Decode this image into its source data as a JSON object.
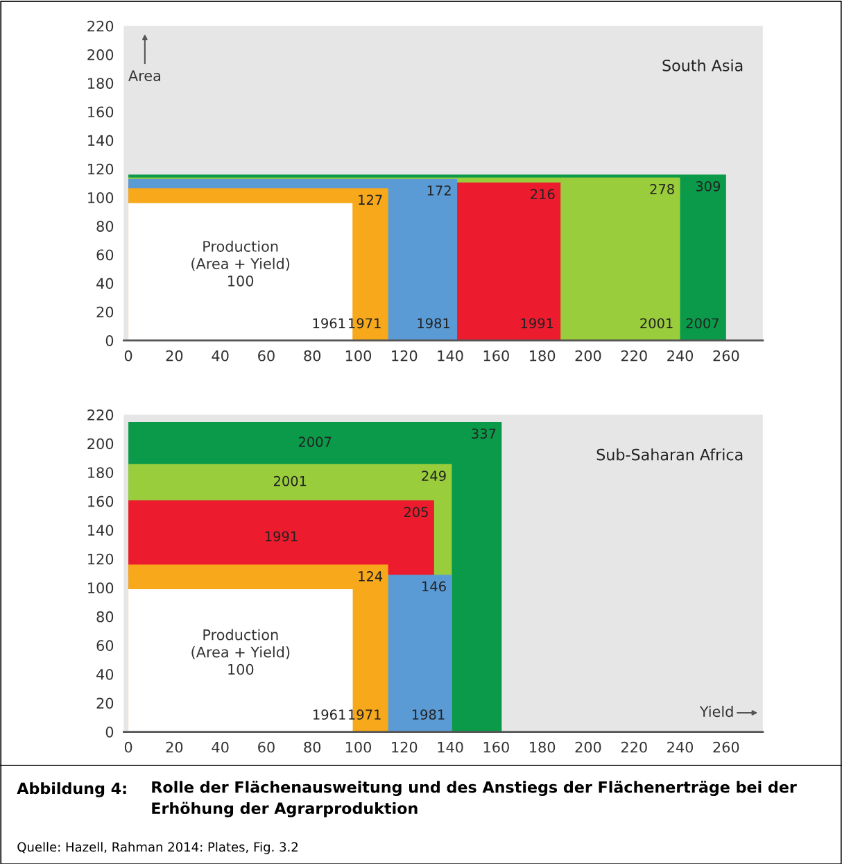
{
  "chart_data": [
    {
      "type": "area",
      "title": "South Asia",
      "ylabel": "Area",
      "xlim": [
        -2,
        276
      ],
      "ylim": [
        0,
        220
      ],
      "xticks": [
        0,
        20,
        40,
        60,
        80,
        100,
        120,
        140,
        160,
        180,
        200,
        220,
        240,
        260
      ],
      "yticks": [
        0,
        20,
        40,
        60,
        80,
        100,
        120,
        140,
        160,
        180,
        200,
        220
      ],
      "grid": false,
      "legend": false,
      "series": [
        {
          "name": "2007",
          "color": "#0a9a4a",
          "x": [
            0,
            260
          ],
          "values": [
            116,
            116
          ]
        },
        {
          "name": "2001",
          "color": "#9acd3c",
          "x": [
            0,
            240
          ],
          "values": [
            114,
            114
          ]
        },
        {
          "name": "1991",
          "color": "#ec1c2e",
          "x": [
            0,
            188
          ],
          "values": [
            110.5,
            110.5
          ]
        },
        {
          "name": "1981",
          "color": "#5b9bd5",
          "x": [
            0,
            143
          ],
          "values": [
            113,
            113
          ]
        },
        {
          "name": "1971",
          "color": "#f7a81b",
          "x": [
            0,
            113
          ],
          "values": [
            106.5,
            106.5
          ]
        },
        {
          "name": "1961",
          "color": "#ffffff",
          "x": [
            0,
            97.5
          ],
          "values": [
            96,
            96
          ]
        }
      ],
      "annotations": [
        "Production\n(Area + Yield)\n100",
        {
          "text": "309",
          "x": 260,
          "y": 116
        },
        {
          "text": "278",
          "x": 240,
          "y": 114
        },
        {
          "text": "216",
          "x": 188,
          "y": 110.5
        },
        {
          "text": "172",
          "x": 143,
          "y": 113
        },
        {
          "text": "127",
          "x": 113,
          "y": 106.5
        }
      ]
    },
    {
      "type": "area",
      "title": "Sub-Saharan Africa",
      "xlabel": "Yield",
      "xlim": [
        -2,
        276
      ],
      "ylim": [
        0,
        220
      ],
      "xticks": [
        0,
        20,
        40,
        60,
        80,
        100,
        120,
        140,
        160,
        180,
        200,
        220,
        240,
        260
      ],
      "yticks": [
        0,
        20,
        40,
        60,
        80,
        100,
        120,
        140,
        160,
        180,
        200,
        220
      ],
      "grid": false,
      "legend": false,
      "series": [
        {
          "name": "2007",
          "color": "#0a9a4a",
          "x": [
            0,
            162.4
          ],
          "values": [
            215,
            215
          ]
        },
        {
          "name": "2001",
          "color": "#9acd3c",
          "x": [
            0,
            140.7
          ],
          "values": [
            185.7,
            185.7
          ]
        },
        {
          "name": "1991",
          "color": "#ec1c2e",
          "x": [
            0,
            133
          ],
          "values": [
            160.6,
            160.6
          ]
        },
        {
          "name": "1981",
          "color": "#5b9bd5",
          "x": [
            0,
            140.7
          ],
          "values": [
            109,
            109
          ]
        },
        {
          "name": "1971",
          "color": "#f7a81b",
          "x": [
            0,
            113
          ],
          "values": [
            116,
            116
          ]
        },
        {
          "name": "1961",
          "color": "#ffffff",
          "x": [
            0,
            97.6
          ],
          "values": [
            99,
            99
          ]
        }
      ],
      "annotations": [
        {
          "text": "337",
          "x": 162.4,
          "y": 215
        },
        {
          "text": "249",
          "x": 140.7,
          "y": 185.7
        },
        {
          "text": "205",
          "x": 133,
          "y": 160.6
        },
        {
          "text": "146",
          "x": 140.7,
          "y": 109
        },
        {
          "text": "124",
          "x": 113,
          "y": 116
        },
        "Production\n(Area + Yield)\n100",
        "Abbildung 4:",
        "Rolle der Flächenausweitung und des Anstiegs der Flächenerträge bei der Erhöhung der Agrarproduktion",
        "Quelle: Hazell, Rahman 2014: Plates, Fig. 3.2"
      ]
    }
  ]
}
